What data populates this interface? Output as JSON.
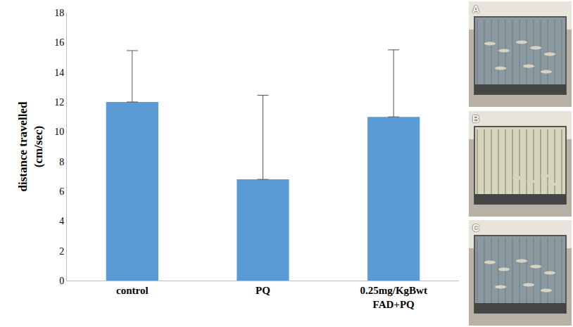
{
  "chart_data": {
    "type": "bar",
    "categories": [
      "control",
      "PQ",
      "0.25mg/KgBwt FAD+PQ"
    ],
    "values": [
      12,
      6.8,
      11
    ],
    "errors": [
      3.45,
      5.65,
      4.5
    ],
    "color": "#5b9bd5",
    "y_label": "distance travelled (cm/sec)",
    "ylim": [
      0,
      18
    ],
    "yticks": [
      0,
      2,
      4,
      6,
      8,
      10,
      12,
      14,
      16,
      18
    ],
    "grid": false
  },
  "photo_panels": [
    "A",
    "B",
    "C"
  ]
}
